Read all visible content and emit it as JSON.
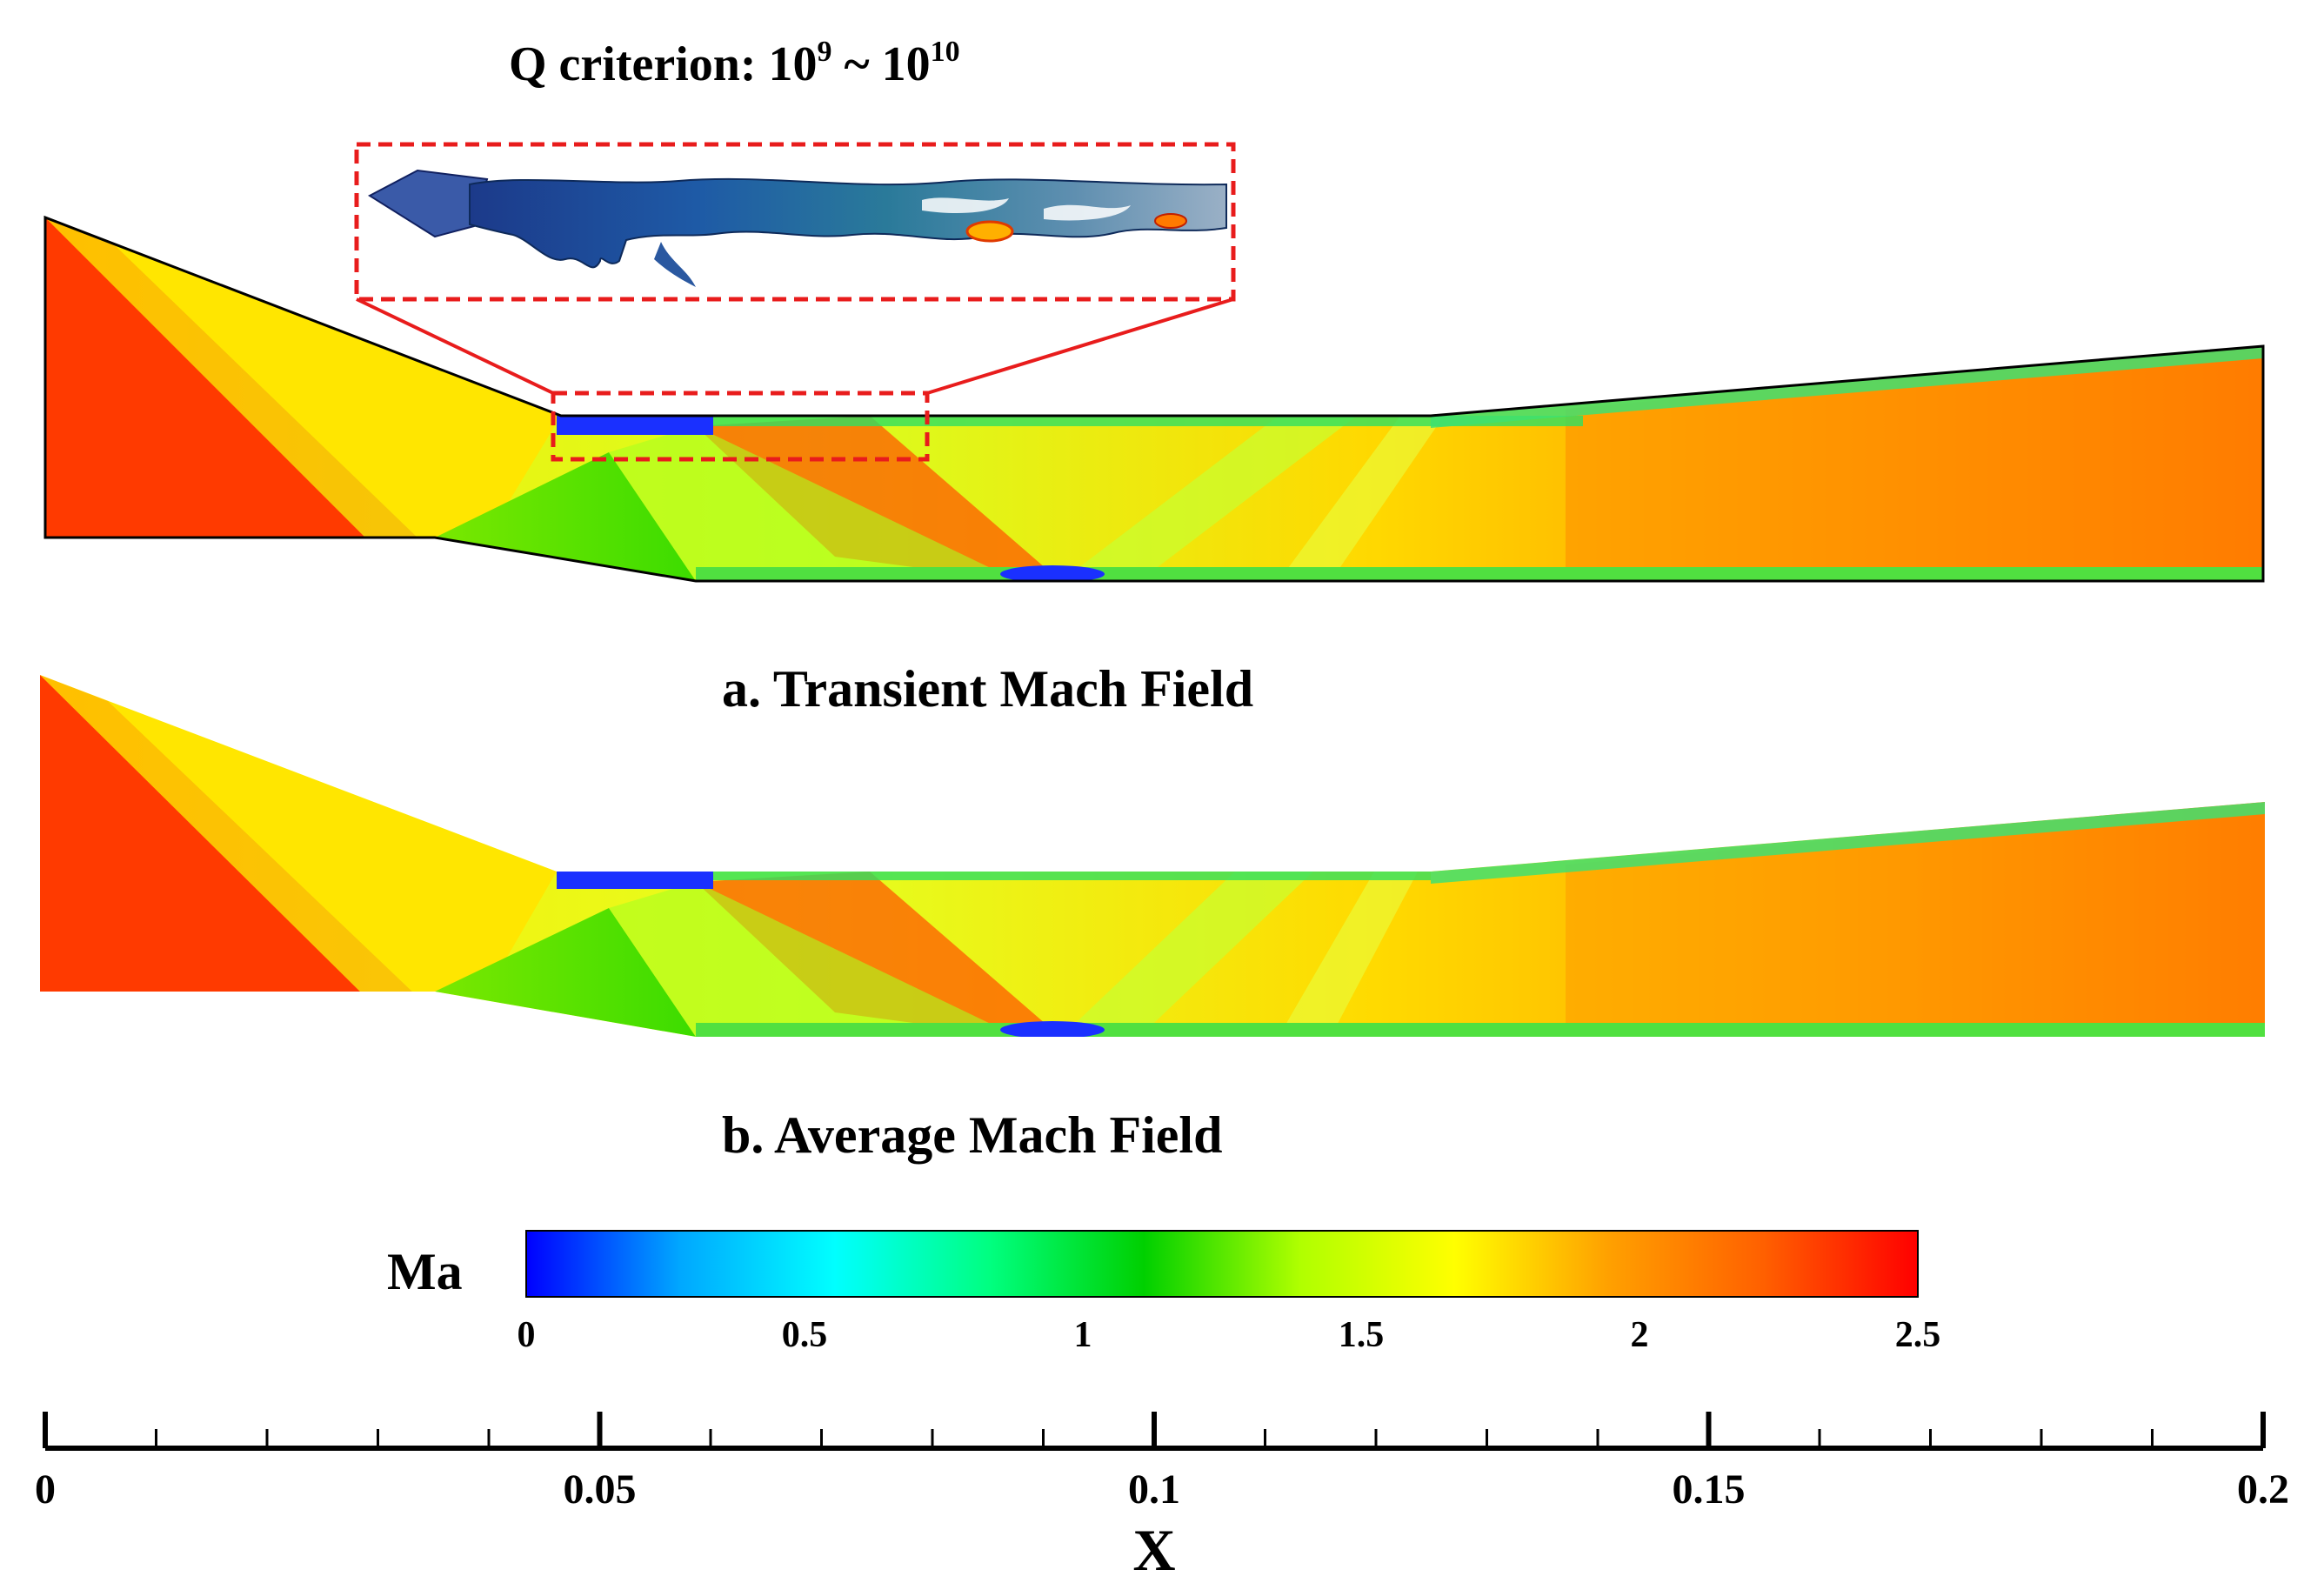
{
  "q_title": {
    "main": "Q criterion: 10",
    "exp1": "9",
    "mid": " ~ 10",
    "exp2": "10"
  },
  "panel_a_caption": "a. Transient Mach Field",
  "panel_b_caption": "b. Average Mach Field",
  "colorbar": {
    "label": "Ma",
    "min": 0,
    "max": 2.5,
    "ticks": [
      "0",
      "0.5",
      "1",
      "1.5",
      "2",
      "2.5"
    ],
    "tick_values": [
      0,
      0.5,
      1,
      1.5,
      2,
      2.5
    ],
    "colors": [
      "#0000ff",
      "#00a8ff",
      "#00ffff",
      "#00ff80",
      "#00d000",
      "#b0ff00",
      "#ffff00",
      "#ffa000",
      "#ff6000",
      "#ff0000"
    ]
  },
  "x_axis": {
    "title": "X",
    "min": 0,
    "max": 0.2,
    "major_ticks": [
      "0",
      "0.05",
      "0.1",
      "0.15",
      "0.2"
    ],
    "major_values": [
      0,
      0.05,
      0.1,
      0.15,
      0.2
    ],
    "minor_step": 0.01
  },
  "colors": {
    "highlight": "#e81c1c",
    "mach_inflow": "#ff3a00",
    "mach_mid": "#ffe000",
    "mach_low": "#6ee000",
    "mach_wall": "#1a30ff"
  }
}
